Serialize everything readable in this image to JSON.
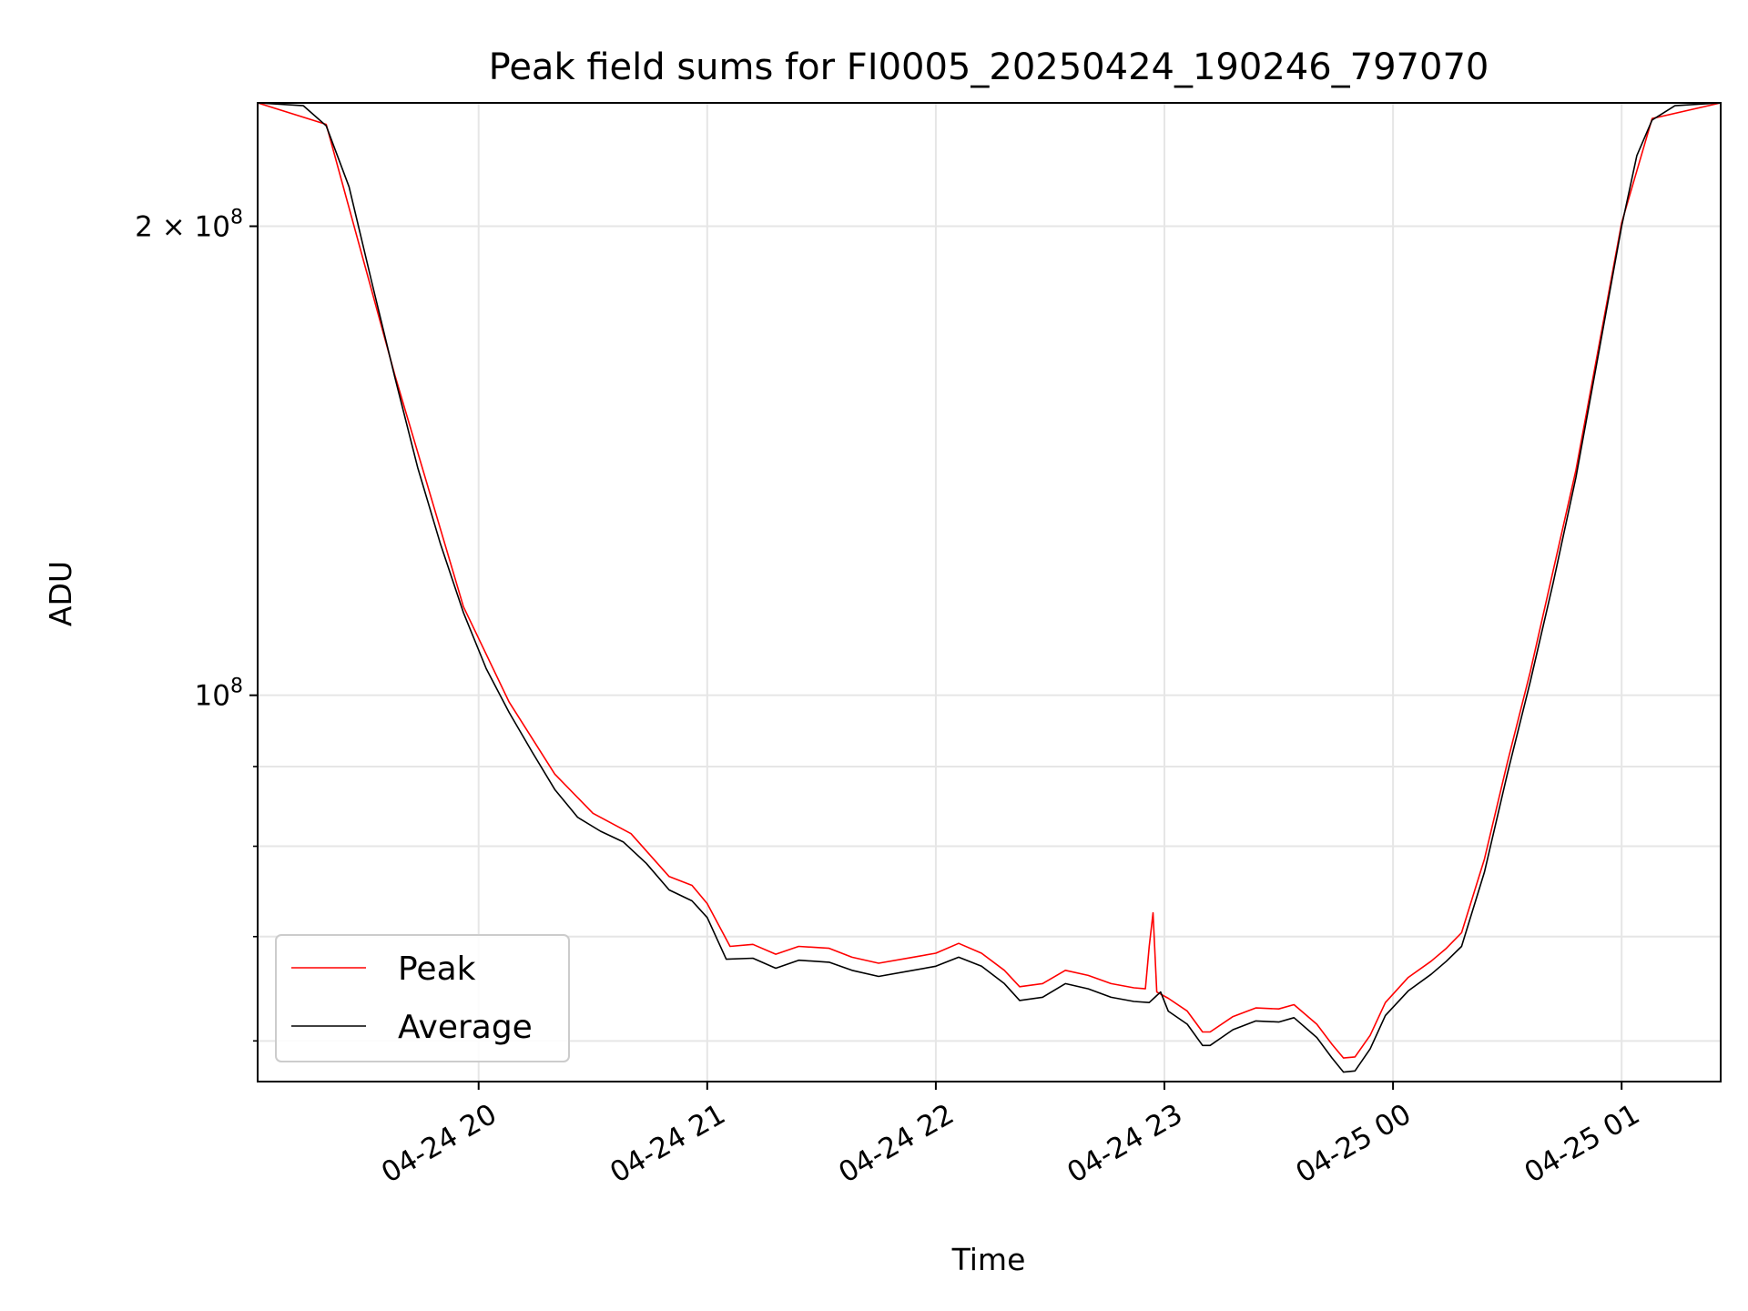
{
  "chart_data": {
    "type": "line",
    "title": "Peak field sums for FI0005_20250424_190246_797070",
    "xlabel": "Time",
    "ylabel": "ADU",
    "y_scale": "log",
    "grid": true,
    "legend_position": "lower-left",
    "xlim": [
      "2025-04-24 19:02",
      "2025-04-25 01:26"
    ],
    "ylim": [
      56500000,
      240000000
    ],
    "x_ticks": [
      {
        "value": "2025-04-24 20:00",
        "label": "04-24 20"
      },
      {
        "value": "2025-04-24 21:00",
        "label": "04-24 21"
      },
      {
        "value": "2025-04-24 22:00",
        "label": "04-24 22"
      },
      {
        "value": "2025-04-24 23:00",
        "label": "04-24 23"
      },
      {
        "value": "2025-04-25 00:00",
        "label": "04-25 00"
      },
      {
        "value": "2025-04-25 01:00",
        "label": "04-25 01"
      }
    ],
    "y_major_ticks": [
      {
        "value": 100000000,
        "base": "10",
        "exp": "8",
        "coef": ""
      },
      {
        "value": 200000000,
        "base": "10",
        "exp": "8",
        "coef": "2 × "
      }
    ],
    "y_minor_ticks": [
      60000000,
      70000000,
      80000000,
      90000000
    ],
    "colors": {
      "Peak": "#ff0000",
      "Average": "#000000"
    },
    "series": [
      {
        "name": "Average",
        "color": "#000000",
        "points": [
          [
            "2025-04-24 19:02",
            240000000
          ],
          [
            "2025-04-24 19:14",
            239000000
          ],
          [
            "2025-04-24 19:20",
            232000000
          ],
          [
            "2025-04-24 19:26",
            212000000
          ],
          [
            "2025-04-24 19:32",
            184000000
          ],
          [
            "2025-04-24 19:38",
            160000000
          ],
          [
            "2025-04-24 19:44",
            140000000
          ],
          [
            "2025-04-24 19:50",
            125000000
          ],
          [
            "2025-04-24 19:56",
            113000000
          ],
          [
            "2025-04-24 20:02",
            104000000
          ],
          [
            "2025-04-24 20:08",
            97500000
          ],
          [
            "2025-04-24 20:14",
            92000000
          ],
          [
            "2025-04-24 20:20",
            87000000
          ],
          [
            "2025-04-24 20:26",
            83500000
          ],
          [
            "2025-04-24 20:32",
            81800000
          ],
          [
            "2025-04-24 20:38",
            80500000
          ],
          [
            "2025-04-24 20:44",
            78000000
          ],
          [
            "2025-04-24 20:50",
            75000000
          ],
          [
            "2025-04-24 20:56",
            73800000
          ],
          [
            "2025-04-24 21:00",
            72000000
          ],
          [
            "2025-04-24 21:05",
            67700000
          ],
          [
            "2025-04-24 21:12",
            67800000
          ],
          [
            "2025-04-24 21:18",
            66800000
          ],
          [
            "2025-04-24 21:24",
            67600000
          ],
          [
            "2025-04-24 21:32",
            67400000
          ],
          [
            "2025-04-24 21:38",
            66600000
          ],
          [
            "2025-04-24 21:45",
            66000000
          ],
          [
            "2025-04-24 21:54",
            66600000
          ],
          [
            "2025-04-24 22:00",
            67000000
          ],
          [
            "2025-04-24 22:06",
            67900000
          ],
          [
            "2025-04-24 22:12",
            67000000
          ],
          [
            "2025-04-24 22:18",
            65300000
          ],
          [
            "2025-04-24 22:22",
            63700000
          ],
          [
            "2025-04-24 22:28",
            64000000
          ],
          [
            "2025-04-24 22:34",
            65300000
          ],
          [
            "2025-04-24 22:40",
            64800000
          ],
          [
            "2025-04-24 22:46",
            64000000
          ],
          [
            "2025-04-24 22:52",
            63600000
          ],
          [
            "2025-04-24 22:56",
            63500000
          ],
          [
            "2025-04-24 22:59",
            64500000
          ],
          [
            "2025-04-24 23:01",
            62700000
          ],
          [
            "2025-04-24 23:06",
            61500000
          ],
          [
            "2025-04-24 23:10",
            59600000
          ],
          [
            "2025-04-24 23:12",
            59600000
          ],
          [
            "2025-04-24 23:18",
            61000000
          ],
          [
            "2025-04-24 23:24",
            61800000
          ],
          [
            "2025-04-24 23:30",
            61700000
          ],
          [
            "2025-04-24 23:34",
            62100000
          ],
          [
            "2025-04-24 23:40",
            60300000
          ],
          [
            "2025-04-24 23:44",
            58500000
          ],
          [
            "2025-04-24 23:47",
            57300000
          ],
          [
            "2025-04-24 23:50",
            57400000
          ],
          [
            "2025-04-24 23:54",
            59300000
          ],
          [
            "2025-04-24 23:58",
            62300000
          ],
          [
            "2025-04-25 00:04",
            64600000
          ],
          [
            "2025-04-25 00:10",
            66200000
          ],
          [
            "2025-04-25 00:14",
            67500000
          ],
          [
            "2025-04-25 00:18",
            69000000
          ],
          [
            "2025-04-25 00:24",
            77000000
          ],
          [
            "2025-04-25 00:30",
            89000000
          ],
          [
            "2025-04-25 00:36",
            102000000
          ],
          [
            "2025-04-25 00:42",
            118000000
          ],
          [
            "2025-04-25 00:48",
            138000000
          ],
          [
            "2025-04-25 00:54",
            166000000
          ],
          [
            "2025-04-25 01:00",
            200000000
          ],
          [
            "2025-04-25 01:04",
            222000000
          ],
          [
            "2025-04-25 01:08",
            234000000
          ],
          [
            "2025-04-25 01:14",
            239000000
          ],
          [
            "2025-04-25 01:26",
            240000000
          ]
        ]
      },
      {
        "name": "Peak",
        "color": "#ff0000",
        "points": [
          [
            "2025-04-24 19:02",
            240000000
          ],
          [
            "2025-04-24 19:20",
            232500000
          ],
          [
            "2025-04-24 19:38",
            160500000
          ],
          [
            "2025-04-24 19:56",
            114000000
          ],
          [
            "2025-04-24 20:08",
            99000000
          ],
          [
            "2025-04-24 20:20",
            89000000
          ],
          [
            "2025-04-24 20:30",
            84000000
          ],
          [
            "2025-04-24 20:40",
            81500000
          ],
          [
            "2025-04-24 20:50",
            76500000
          ],
          [
            "2025-04-24 20:56",
            75500000
          ],
          [
            "2025-04-24 21:00",
            73500000
          ],
          [
            "2025-04-24 21:06",
            69000000
          ],
          [
            "2025-04-24 21:12",
            69200000
          ],
          [
            "2025-04-24 21:18",
            68200000
          ],
          [
            "2025-04-24 21:24",
            69000000
          ],
          [
            "2025-04-24 21:32",
            68800000
          ],
          [
            "2025-04-24 21:38",
            67900000
          ],
          [
            "2025-04-24 21:45",
            67300000
          ],
          [
            "2025-04-24 21:54",
            67900000
          ],
          [
            "2025-04-24 22:00",
            68300000
          ],
          [
            "2025-04-24 22:06",
            69300000
          ],
          [
            "2025-04-24 22:12",
            68300000
          ],
          [
            "2025-04-24 22:18",
            66600000
          ],
          [
            "2025-04-24 22:22",
            65000000
          ],
          [
            "2025-04-24 22:28",
            65300000
          ],
          [
            "2025-04-24 22:34",
            66600000
          ],
          [
            "2025-04-24 22:40",
            66100000
          ],
          [
            "2025-04-24 22:46",
            65300000
          ],
          [
            "2025-04-24 22:52",
            64900000
          ],
          [
            "2025-04-24 22:55",
            64800000
          ],
          [
            "2025-04-24 22:56",
            69000000
          ],
          [
            "2025-04-24 22:57",
            72500000
          ],
          [
            "2025-04-24 22:58",
            64500000
          ],
          [
            "2025-04-24 23:01",
            63900000
          ],
          [
            "2025-04-24 23:06",
            62700000
          ],
          [
            "2025-04-24 23:10",
            60800000
          ],
          [
            "2025-04-24 23:12",
            60800000
          ],
          [
            "2025-04-24 23:18",
            62200000
          ],
          [
            "2025-04-24 23:24",
            63000000
          ],
          [
            "2025-04-24 23:30",
            62900000
          ],
          [
            "2025-04-24 23:34",
            63300000
          ],
          [
            "2025-04-24 23:40",
            61500000
          ],
          [
            "2025-04-24 23:44",
            59700000
          ],
          [
            "2025-04-24 23:47",
            58500000
          ],
          [
            "2025-04-24 23:50",
            58600000
          ],
          [
            "2025-04-24 23:54",
            60500000
          ],
          [
            "2025-04-24 23:58",
            63500000
          ],
          [
            "2025-04-25 00:04",
            65900000
          ],
          [
            "2025-04-25 00:10",
            67500000
          ],
          [
            "2025-04-25 00:14",
            68800000
          ],
          [
            "2025-04-25 00:18",
            70400000
          ],
          [
            "2025-04-25 00:24",
            78500000
          ],
          [
            "2025-04-25 00:30",
            90500000
          ],
          [
            "2025-04-25 00:36",
            103500000
          ],
          [
            "2025-04-25 00:48",
            139500000
          ],
          [
            "2025-04-25 01:00",
            201000000
          ],
          [
            "2025-04-25 01:08",
            234500000
          ],
          [
            "2025-04-25 01:26",
            240000000
          ]
        ]
      }
    ]
  }
}
